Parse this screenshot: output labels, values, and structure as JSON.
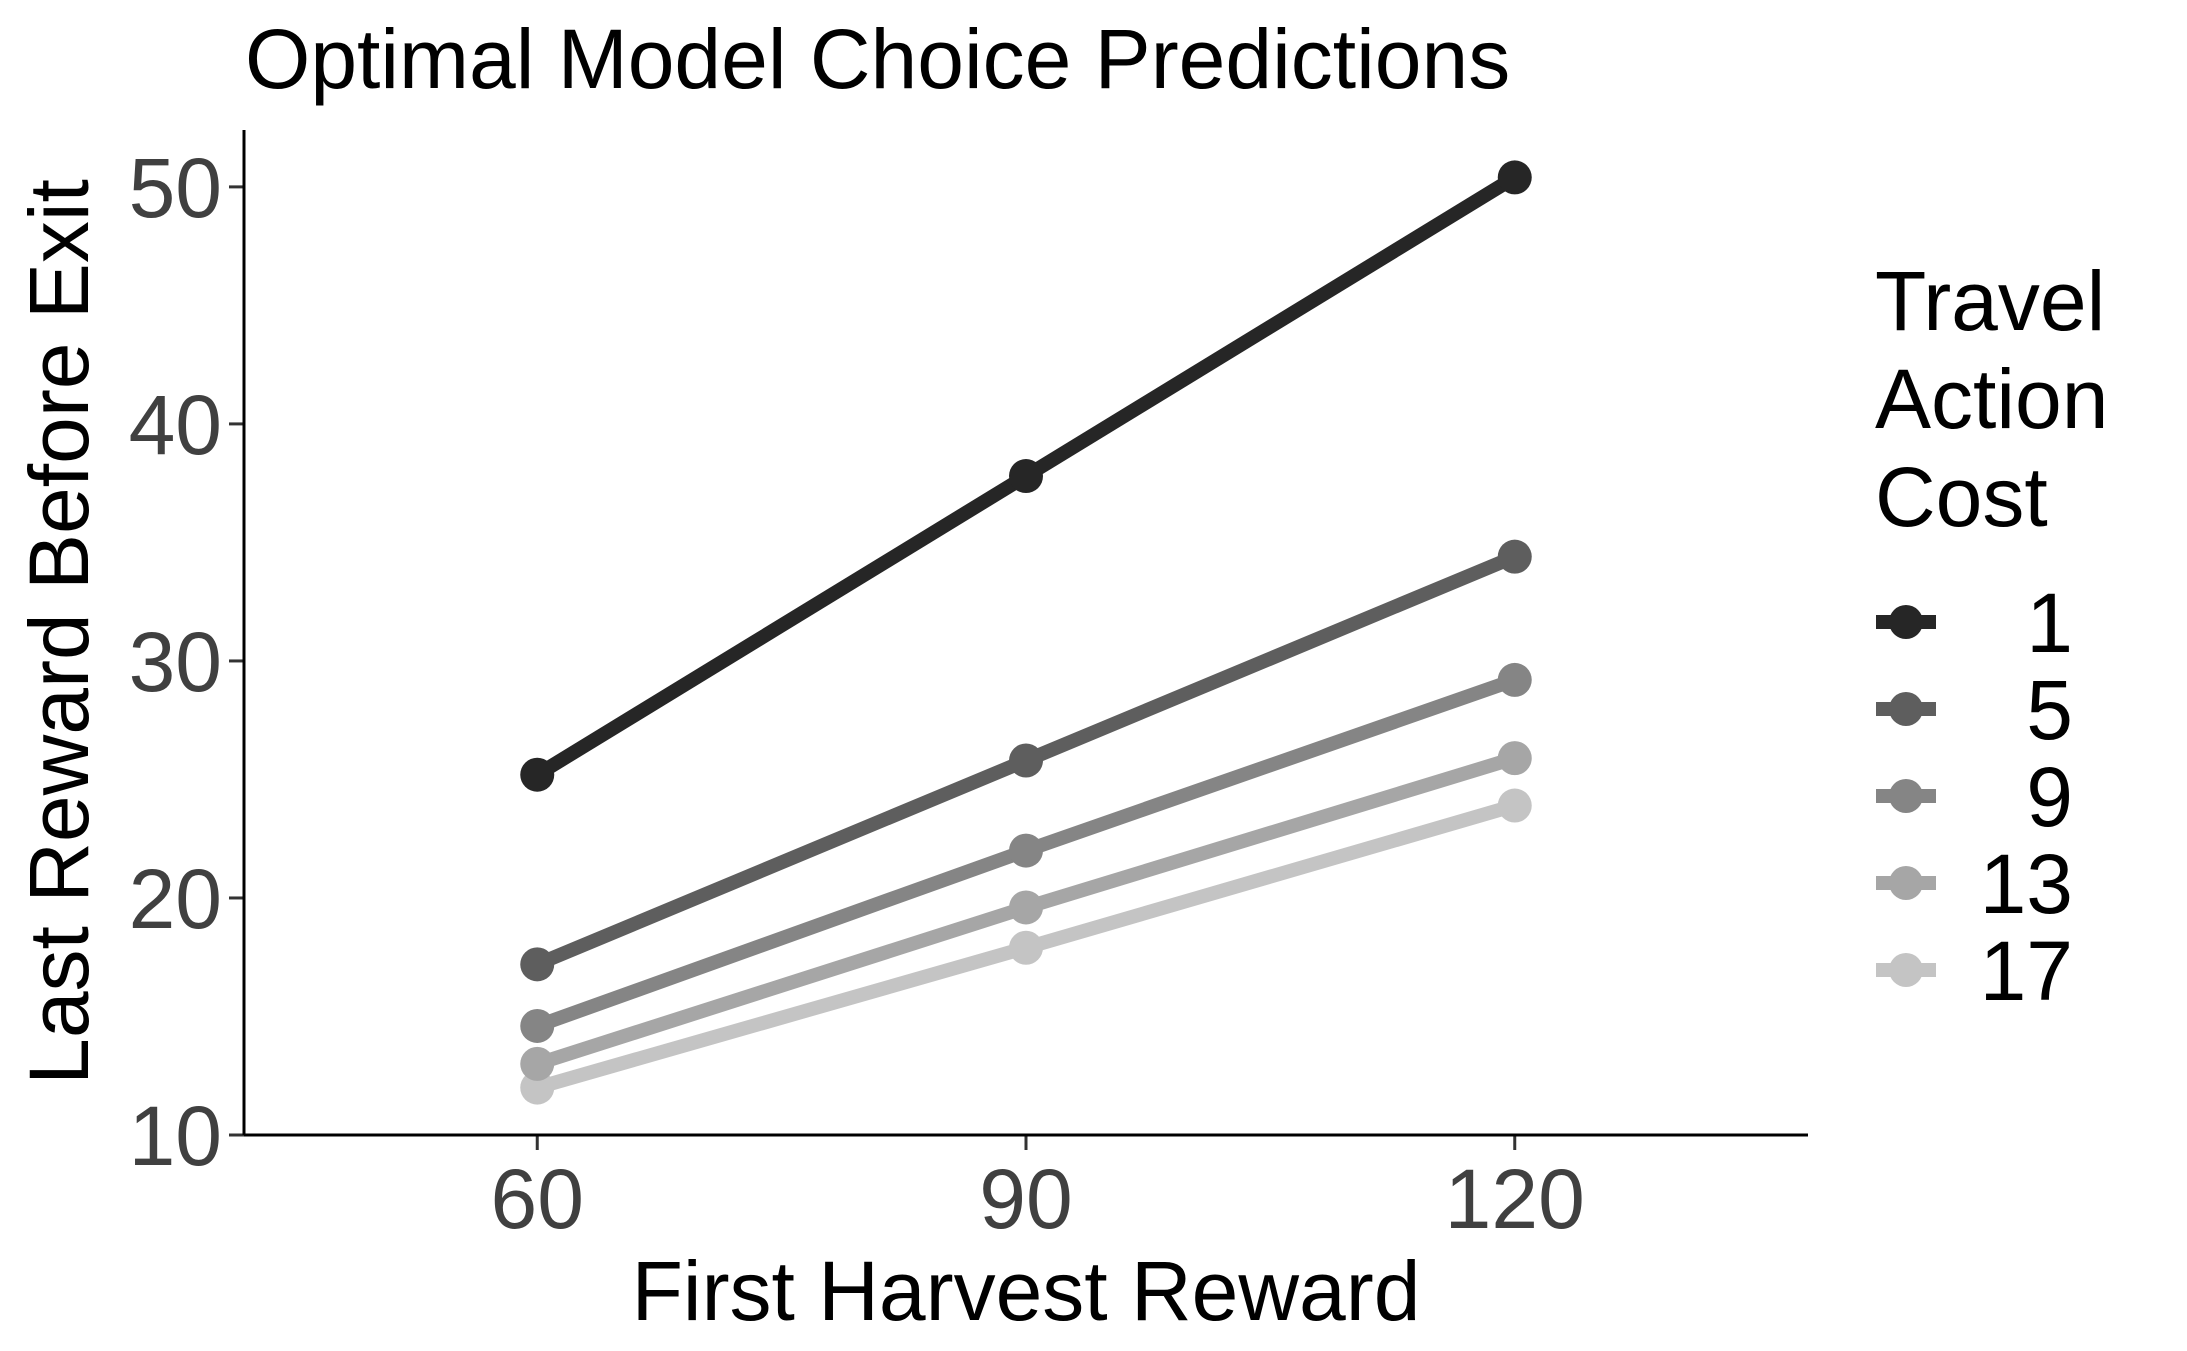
{
  "chart_data": {
    "type": "line",
    "title": "Optimal Model Choice Predictions",
    "xlabel": "First Harvest Reward",
    "ylabel": "Last Reward Before Exit",
    "x": [
      60,
      90,
      120
    ],
    "x_ticks": [
      "60",
      "90",
      "120"
    ],
    "xlim": [
      42,
      138
    ],
    "y_ticks": [
      "10",
      "20",
      "30",
      "40",
      "50"
    ],
    "ylim": [
      10,
      52.4
    ],
    "grid": false,
    "legend": {
      "title_lines": [
        "Travel",
        "Action",
        "Cost"
      ],
      "position": "right"
    },
    "series": [
      {
        "name": "1",
        "color": "#262626",
        "values": [
          25.2,
          37.8,
          50.4
        ]
      },
      {
        "name": "5",
        "color": "#5e5e5e",
        "values": [
          17.2,
          25.8,
          34.4
        ]
      },
      {
        "name": "9",
        "color": "#858585",
        "values": [
          14.6,
          22.0,
          29.2
        ]
      },
      {
        "name": "13",
        "color": "#a6a6a6",
        "values": [
          13.0,
          19.6,
          25.9
        ]
      },
      {
        "name": "17",
        "color": "#c4c4c4",
        "values": [
          12.0,
          17.9,
          23.9
        ]
      }
    ]
  }
}
